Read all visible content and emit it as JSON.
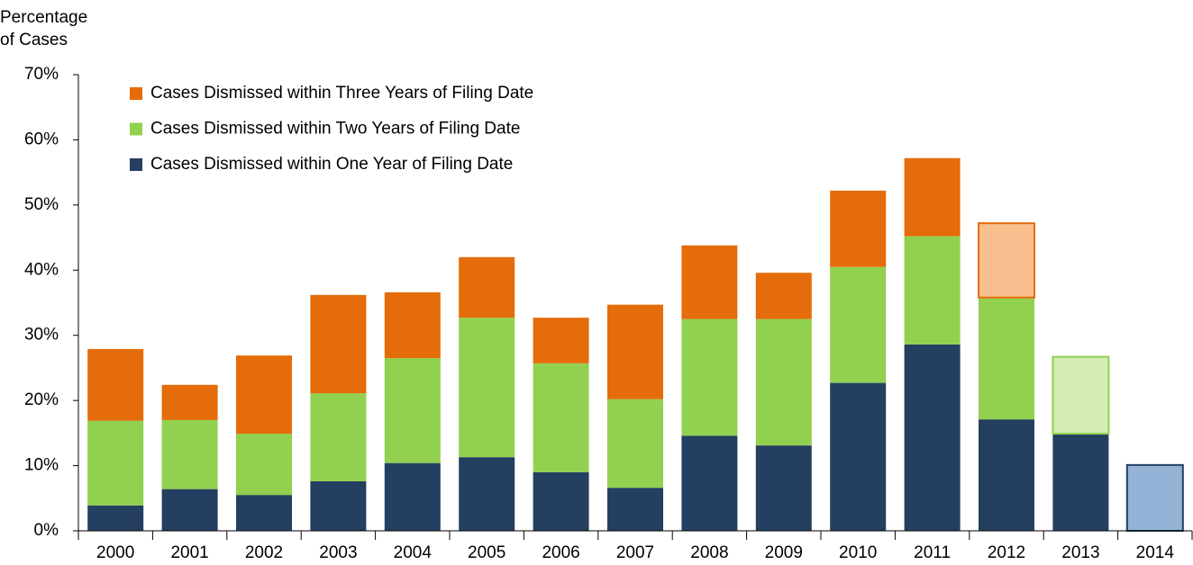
{
  "chart_data": {
    "type": "stacked_bar",
    "y_label": [
      "Percentage",
      "of Cases"
    ],
    "categories": [
      "2000",
      "2001",
      "2002",
      "2003",
      "2004",
      "2005",
      "2006",
      "2007",
      "2008",
      "2009",
      "2010",
      "2011",
      "2012",
      "2013",
      "2014"
    ],
    "series": [
      {
        "name": "Cases Dismissed within One Year of Filing Date",
        "color": "#243f60",
        "values": [
          3.9,
          6.4,
          5.5,
          7.6,
          10.4,
          11.3,
          9.0,
          6.6,
          14.6,
          13.1,
          22.7,
          28.6,
          17.1,
          14.9,
          10.1
        ],
        "colors": [
          "#243f60",
          "#243f60",
          "#243f60",
          "#243f60",
          "#243f60",
          "#243f60",
          "#243f60",
          "#243f60",
          "#243f60",
          "#243f60",
          "#243f60",
          "#243f60",
          "#243f60",
          "#243f60",
          "#95b3d7"
        ]
      },
      {
        "name": "Cases Dismissed within Two Years of Filing Date",
        "color": "#92d050",
        "values": [
          13.0,
          10.6,
          9.4,
          13.5,
          16.1,
          21.4,
          16.7,
          13.6,
          17.9,
          19.4,
          17.8,
          16.6,
          18.7,
          11.8,
          null
        ],
        "colors": [
          "#92d050",
          "#92d050",
          "#92d050",
          "#92d050",
          "#92d050",
          "#92d050",
          "#92d050",
          "#92d050",
          "#92d050",
          "#92d050",
          "#92d050",
          "#92d050",
          "#92d050",
          "#d4ebb5",
          null
        ]
      },
      {
        "name": "Cases Dismissed within Three Years of Filing Date",
        "color": "#e46c0a",
        "values": [
          11.0,
          5.4,
          12.0,
          15.1,
          10.1,
          9.3,
          7.0,
          14.5,
          11.3,
          7.1,
          11.7,
          12.0,
          11.4,
          null,
          null
        ],
        "colors": [
          "#e46c0a",
          "#e46c0a",
          "#e46c0a",
          "#e46c0a",
          "#e46c0a",
          "#e46c0a",
          "#e46c0a",
          "#e46c0a",
          "#e46c0a",
          "#e46c0a",
          "#e46c0a",
          "#e46c0a",
          "#f9bf8f",
          null,
          null
        ]
      }
    ],
    "ylim": [
      0,
      70
    ],
    "yticks": [
      {
        "value": 0,
        "label": "0%"
      },
      {
        "value": 10,
        "label": "10%"
      },
      {
        "value": 20,
        "label": "20%"
      },
      {
        "value": 30,
        "label": "30%"
      },
      {
        "value": 40,
        "label": "40%"
      },
      {
        "value": 50,
        "label": "50%"
      },
      {
        "value": 60,
        "label": "60%"
      },
      {
        "value": 70,
        "label": "70%"
      }
    ],
    "grid": false,
    "legend": "upper left"
  }
}
